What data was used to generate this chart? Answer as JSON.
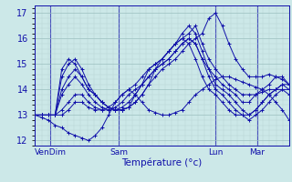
{
  "xlabel": "Température (°c)",
  "bg_color": "#cce8e8",
  "plot_bg_color": "#cce8e8",
  "grid_major_color": "#9bbfbf",
  "grid_minor_color": "#b5d4d4",
  "line_color": "#1010aa",
  "ylim": [
    11.8,
    17.3
  ],
  "yticks": [
    12,
    13,
    14,
    15,
    16,
    17
  ],
  "xtick_labels": [
    "VenDim",
    "Sam",
    "Lun",
    "Mar"
  ],
  "xtick_pos": [
    0.06,
    0.33,
    0.71,
    0.875
  ],
  "series": [
    [
      13.0,
      12.9,
      12.8,
      12.6,
      12.5,
      12.3,
      12.2,
      12.1,
      12.0,
      12.2,
      12.5,
      13.0,
      13.5,
      13.8,
      14.0,
      13.8,
      13.5,
      13.2,
      13.1,
      13.0,
      13.0,
      13.1,
      13.2,
      13.5,
      13.8,
      14.0,
      14.2,
      14.4,
      14.5,
      14.5,
      14.4,
      14.3,
      14.2,
      14.1,
      14.0,
      13.8,
      13.5,
      13.2,
      12.8
    ],
    [
      13.0,
      13.0,
      13.0,
      13.0,
      14.5,
      15.0,
      15.2,
      14.8,
      14.2,
      13.8,
      13.5,
      13.3,
      13.2,
      13.2,
      13.3,
      13.5,
      13.8,
      14.2,
      14.5,
      14.8,
      15.0,
      15.2,
      15.5,
      15.8,
      16.0,
      16.2,
      16.8,
      17.0,
      16.5,
      15.8,
      15.2,
      14.8,
      14.5,
      14.5,
      14.5,
      14.6,
      14.5,
      14.4,
      14.2
    ],
    [
      13.0,
      13.0,
      13.0,
      13.0,
      14.0,
      14.5,
      14.8,
      14.5,
      14.0,
      13.8,
      13.5,
      13.3,
      13.2,
      13.2,
      13.3,
      13.5,
      13.8,
      14.2,
      14.8,
      15.2,
      15.5,
      15.8,
      16.0,
      16.2,
      16.5,
      15.8,
      15.2,
      14.8,
      14.5,
      14.2,
      14.0,
      13.8,
      13.8,
      13.8,
      13.9,
      14.0,
      14.0,
      14.0,
      13.8
    ],
    [
      13.0,
      13.0,
      13.0,
      13.0,
      14.8,
      15.2,
      15.0,
      14.5,
      14.0,
      13.8,
      13.5,
      13.3,
      13.2,
      13.2,
      13.3,
      13.8,
      14.2,
      14.8,
      15.0,
      15.2,
      15.5,
      15.8,
      16.2,
      16.5,
      16.2,
      15.5,
      14.8,
      14.2,
      14.0,
      13.8,
      13.5,
      13.2,
      13.0,
      13.2,
      13.5,
      13.8,
      14.0,
      14.2,
      14.0
    ],
    [
      13.0,
      13.0,
      13.0,
      13.0,
      13.8,
      14.2,
      14.5,
      14.2,
      13.8,
      13.5,
      13.3,
      13.2,
      13.2,
      13.3,
      13.5,
      13.8,
      14.2,
      14.5,
      14.8,
      15.0,
      15.2,
      15.5,
      15.8,
      16.0,
      15.8,
      15.2,
      14.5,
      14.0,
      13.8,
      13.5,
      13.2,
      13.0,
      12.8,
      13.0,
      13.2,
      13.5,
      13.8,
      14.0,
      14.0
    ],
    [
      13.0,
      13.0,
      13.0,
      13.0,
      13.2,
      13.5,
      13.8,
      13.8,
      13.5,
      13.3,
      13.2,
      13.2,
      13.3,
      13.5,
      13.8,
      14.0,
      14.2,
      14.5,
      14.8,
      15.0,
      15.2,
      15.5,
      15.8,
      16.0,
      15.8,
      15.2,
      14.8,
      14.5,
      14.2,
      14.0,
      13.8,
      13.5,
      13.5,
      13.8,
      14.0,
      14.2,
      14.5,
      14.5,
      14.2
    ],
    [
      13.0,
      13.0,
      13.0,
      13.0,
      13.0,
      13.2,
      13.5,
      13.5,
      13.3,
      13.2,
      13.2,
      13.3,
      13.5,
      13.8,
      14.0,
      14.2,
      14.5,
      14.8,
      15.0,
      15.2,
      15.5,
      15.8,
      16.0,
      15.8,
      15.2,
      14.5,
      14.0,
      13.8,
      13.5,
      13.2,
      13.0,
      13.0,
      13.0,
      13.2,
      13.5,
      13.8,
      14.0,
      14.2,
      14.2
    ]
  ],
  "n_points": 39
}
